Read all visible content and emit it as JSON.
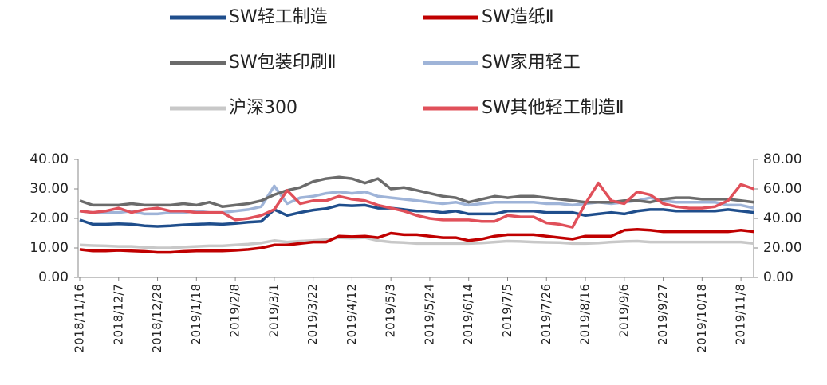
{
  "chart_data": {
    "type": "line",
    "categories": [
      "2018/11/16",
      null,
      null,
      "2018/12/7",
      null,
      null,
      "2018/12/28",
      null,
      null,
      "2019/1/18",
      null,
      null,
      "2019/2/8",
      null,
      null,
      "2019/3/1",
      null,
      null,
      "2019/3/22",
      null,
      null,
      "2019/4/12",
      null,
      null,
      "2019/5/3",
      null,
      null,
      "2019/5/24",
      null,
      null,
      "2019/6/14",
      null,
      null,
      "2019/7/5",
      null,
      null,
      "2019/7/26",
      null,
      null,
      "2019/8/16",
      null,
      null,
      "2019/9/6",
      null,
      null,
      "2019/9/27",
      null,
      null,
      "2019/10/18",
      null,
      null,
      "2019/11/8",
      null
    ],
    "series": [
      {
        "name": "SW轻工制造",
        "color": "#1f4e8c",
        "values": [
          19.5,
          18,
          18,
          18.2,
          18,
          17.5,
          17.3,
          17.5,
          17.8,
          18,
          18.2,
          18,
          18.3,
          18.7,
          19,
          23,
          21,
          22,
          22.8,
          23.3,
          24.5,
          24.3,
          24.5,
          23.5,
          23.5,
          23,
          22.5,
          22.5,
          22,
          22.5,
          21.5,
          21.5,
          21.5,
          22.5,
          22.5,
          22.5,
          22,
          22,
          22,
          21,
          21.5,
          22,
          21.5,
          22.5,
          23,
          23,
          22.5,
          22.5,
          22.5,
          22.5,
          23,
          22.5,
          22
        ]
      },
      {
        "name": "SW造纸Ⅱ",
        "color": "#c00000",
        "values": [
          9.5,
          9,
          9,
          9.2,
          9,
          8.8,
          8.5,
          8.5,
          8.8,
          9,
          9,
          9,
          9.2,
          9.5,
          10,
          11,
          11,
          11.5,
          12,
          12,
          14,
          13.8,
          14,
          13.5,
          15,
          14.5,
          14.5,
          14,
          13.5,
          13.5,
          12.5,
          13,
          14,
          14.5,
          14.5,
          14.5,
          14,
          13.5,
          13,
          14,
          14,
          14,
          16,
          16.3,
          16,
          15.5,
          15.5,
          15.5,
          15.5,
          15.5,
          15.5,
          16,
          15.5
        ]
      },
      {
        "name": "SW包装印刷Ⅱ",
        "color": "#6b6b6b",
        "values": [
          26,
          24.5,
          24.5,
          24.5,
          25,
          24.5,
          24.5,
          24.5,
          25,
          24.5,
          25.5,
          24,
          24.5,
          25,
          26,
          28,
          29.5,
          30.5,
          32.5,
          33.5,
          34,
          33.5,
          32,
          33.5,
          30,
          30.5,
          29.5,
          28.5,
          27.5,
          27,
          25.5,
          26.5,
          27.5,
          27,
          27.5,
          27.5,
          27,
          26.5,
          26,
          25.5,
          25.5,
          25.5,
          26,
          26,
          25.5,
          26.5,
          27,
          27,
          26.5,
          26.5,
          26.5,
          26,
          25.5
        ]
      },
      {
        "name": "SW家用轻工",
        "color": "#9fb4d8",
        "values": [
          22.5,
          22,
          22,
          22,
          22.5,
          21.5,
          21.5,
          22,
          22,
          22.5,
          22,
          22,
          22.5,
          23,
          24,
          31,
          25,
          27,
          27.5,
          28.5,
          29,
          28.5,
          29,
          27.5,
          27,
          26.5,
          26,
          25.5,
          25,
          25.5,
          24.5,
          25,
          25.5,
          25.5,
          25.5,
          25.5,
          25,
          25,
          24.5,
          25,
          25.5,
          25,
          25.5,
          26,
          27,
          26,
          25.5,
          25.5,
          25.5,
          25.5,
          24.5,
          24.5,
          23.5
        ]
      },
      {
        "name": "沪深300",
        "color": "#c8c8c8",
        "values": [
          11,
          10.8,
          10.7,
          10.5,
          10.5,
          10.2,
          10,
          10,
          10.3,
          10.5,
          10.7,
          10.7,
          11,
          11.3,
          11.7,
          12.5,
          12,
          12.3,
          12.5,
          12.8,
          13.5,
          13.3,
          13.5,
          12.5,
          12,
          11.8,
          11.5,
          11.5,
          11.5,
          11.5,
          11.5,
          11.7,
          12,
          12.3,
          12.2,
          12,
          11.9,
          11.8,
          11.5,
          11.5,
          11.7,
          12,
          12.2,
          12.3,
          12,
          12,
          12,
          12,
          12,
          12,
          12,
          12,
          11.5
        ]
      },
      {
        "name": "SW其他轻工制造Ⅱ",
        "color": "#e0505a",
        "axis": "y2",
        "values": [
          45,
          44,
          45,
          47,
          44,
          46,
          47,
          45,
          45,
          44,
          44,
          44,
          39,
          40,
          42,
          46,
          59,
          50,
          52,
          52,
          55,
          53,
          52,
          49,
          47,
          45,
          42,
          40,
          39,
          39,
          39,
          38,
          38,
          42,
          41,
          41,
          37,
          36,
          34,
          50,
          64,
          52,
          50,
          58,
          56,
          50,
          48,
          47,
          47,
          48,
          52,
          63,
          60
        ]
      }
    ],
    "ylim": [
      0,
      40
    ],
    "yticks": [
      {
        "value": 0,
        "label": "0.00"
      },
      {
        "value": 10,
        "label": "10.00"
      },
      {
        "value": 20,
        "label": "20.00"
      },
      {
        "value": 30,
        "label": "30.00"
      },
      {
        "value": 40,
        "label": "40.00"
      }
    ],
    "y2lim": [
      0,
      80
    ],
    "y2ticks": [
      {
        "value": 0,
        "label": "0.00"
      },
      {
        "value": 20,
        "label": "20.00"
      },
      {
        "value": 40,
        "label": "40.00"
      },
      {
        "value": 60,
        "label": "60.00"
      },
      {
        "value": 80,
        "label": "80.00"
      }
    ]
  }
}
